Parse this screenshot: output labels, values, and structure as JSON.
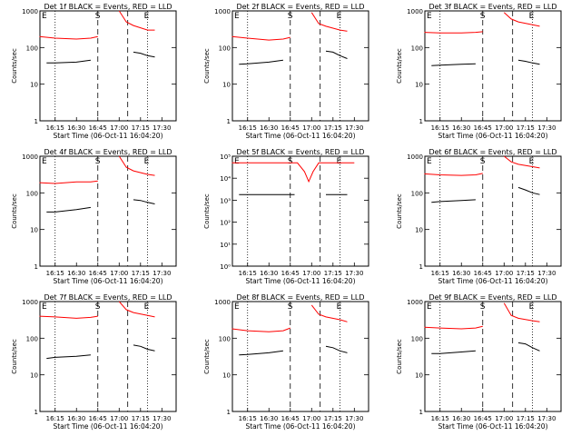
{
  "figure": {
    "time_labels": [
      "16:15",
      "16:30",
      "16:45",
      "17:00",
      "17:15",
      "17:30"
    ],
    "x_axis_label": "Start Time (06-Oct-11 16:04:20)",
    "y_axis_label": "Counts/sec",
    "marker_labels": [
      "E",
      "S",
      "E"
    ],
    "dotted_times": [
      16.25,
      17.333
    ],
    "dashed_times": [
      16.75,
      17.1
    ]
  },
  "colors": {
    "events": "#000000",
    "lld": "#ff0000"
  },
  "chart_data": [
    {
      "type": "line",
      "title": "Det 1f BLACK = Events, RED = LLD",
      "ylim": [
        1,
        1000
      ],
      "yticks": [
        "1",
        "10",
        "100",
        "1000"
      ],
      "xlim": [
        "16:04:20",
        "17:40"
      ],
      "series": [
        {
          "name": "LLD",
          "color": "red",
          "segments": [
            {
              "x": [
                "16:04",
                "16:15",
                "16:30",
                "16:40",
                "16:45"
              ],
              "y": [
                200,
                180,
                170,
                180,
                200
              ]
            },
            {
              "x": [
                "17:00",
                "17:05",
                "17:10",
                "17:20",
                "17:25"
              ],
              "y": [
                1000,
                500,
                400,
                300,
                300
              ]
            }
          ]
        },
        {
          "name": "Events",
          "color": "black",
          "segments": [
            {
              "x": [
                "16:09",
                "16:15",
                "16:30",
                "16:40"
              ],
              "y": [
                38,
                38,
                40,
                45
              ]
            },
            {
              "x": [
                "17:10",
                "17:15",
                "17:20",
                "17:25"
              ],
              "y": [
                75,
                70,
                60,
                55
              ]
            }
          ]
        }
      ]
    },
    {
      "type": "line",
      "title": "Det 2f BLACK = Events, RED = LLD",
      "ylim": [
        1,
        1000
      ],
      "yticks": [
        "1",
        "10",
        "100",
        "1000"
      ],
      "xlim": [
        "16:04:20",
        "17:40"
      ],
      "series": [
        {
          "name": "LLD",
          "color": "red",
          "segments": [
            {
              "x": [
                "16:04",
                "16:15",
                "16:30",
                "16:40",
                "16:45"
              ],
              "y": [
                200,
                180,
                160,
                170,
                190
              ]
            },
            {
              "x": [
                "17:00",
                "17:05",
                "17:10",
                "17:20",
                "17:25"
              ],
              "y": [
                900,
                450,
                380,
                300,
                280
              ]
            }
          ]
        },
        {
          "name": "Events",
          "color": "black",
          "segments": [
            {
              "x": [
                "16:09",
                "16:15",
                "16:30",
                "16:40"
              ],
              "y": [
                35,
                36,
                40,
                45
              ]
            },
            {
              "x": [
                "17:10",
                "17:15",
                "17:20",
                "17:25"
              ],
              "y": [
                80,
                75,
                60,
                50
              ]
            }
          ]
        }
      ]
    },
    {
      "type": "line",
      "title": "Det 3f BLACK = Events, RED = LLD",
      "ylim": [
        1,
        1000
      ],
      "yticks": [
        "1",
        "10",
        "100",
        "1000"
      ],
      "xlim": [
        "16:04:20",
        "17:40"
      ],
      "series": [
        {
          "name": "LLD",
          "color": "red",
          "segments": [
            {
              "x": [
                "16:04",
                "16:15",
                "16:30",
                "16:40",
                "16:45"
              ],
              "y": [
                260,
                250,
                250,
                260,
                270
              ]
            },
            {
              "x": [
                "17:00",
                "17:05",
                "17:10",
                "17:20",
                "17:25"
              ],
              "y": [
                900,
                600,
                500,
                420,
                380
              ]
            }
          ]
        },
        {
          "name": "Events",
          "color": "black",
          "segments": [
            {
              "x": [
                "16:09",
                "16:15",
                "16:30",
                "16:40"
              ],
              "y": [
                32,
                33,
                35,
                36
              ]
            },
            {
              "x": [
                "17:10",
                "17:15",
                "17:20",
                "17:25"
              ],
              "y": [
                45,
                42,
                38,
                35
              ]
            }
          ]
        }
      ]
    },
    {
      "type": "line",
      "title": "Det 4f BLACK = Events, RED = LLD",
      "ylim": [
        1,
        1000
      ],
      "yticks": [
        "1",
        "10",
        "100",
        "1000"
      ],
      "xlim": [
        "16:04:20",
        "17:40"
      ],
      "series": [
        {
          "name": "LLD",
          "color": "red",
          "segments": [
            {
              "x": [
                "16:04",
                "16:15",
                "16:30",
                "16:40",
                "16:45"
              ],
              "y": [
                190,
                180,
                200,
                200,
                210
              ]
            },
            {
              "x": [
                "17:00",
                "17:05",
                "17:10",
                "17:20",
                "17:25"
              ],
              "y": [
                1000,
                500,
                400,
                320,
                300
              ]
            }
          ]
        },
        {
          "name": "Events",
          "color": "black",
          "segments": [
            {
              "x": [
                "16:09",
                "16:15",
                "16:30",
                "16:40"
              ],
              "y": [
                30,
                30,
                35,
                40
              ]
            },
            {
              "x": [
                "17:10",
                "17:15",
                "17:20",
                "17:25"
              ],
              "y": [
                65,
                62,
                55,
                50
              ]
            }
          ]
        }
      ]
    },
    {
      "type": "line",
      "title": "Det 5f BLACK = Events, RED = LLD",
      "ylim": [
        1,
        100000
      ],
      "yticks": [
        "10⁰",
        "10¹",
        "10²",
        "10³",
        "10⁴",
        "10⁵"
      ],
      "xlim": [
        "16:04:20",
        "17:40"
      ],
      "series": [
        {
          "name": "LLD",
          "color": "red",
          "segments": [
            {
              "x": [
                "16:04",
                "16:30",
                "16:50",
                "16:55",
                "16:58",
                "17:01",
                "17:05",
                "17:20",
                "17:30"
              ],
              "y": [
                50000,
                50000,
                50000,
                20000,
                7000,
                20000,
                50000,
                50000,
                50000
              ]
            }
          ]
        },
        {
          "name": "Events",
          "color": "black",
          "segments": [
            {
              "x": [
                "16:09",
                "16:15",
                "16:30",
                "16:45",
                "16:48"
              ],
              "y": [
                1800,
                1800,
                1800,
                1800,
                1800
              ]
            },
            {
              "x": [
                "17:10",
                "17:15",
                "17:20",
                "17:25"
              ],
              "y": [
                1800,
                1800,
                1800,
                1800
              ]
            }
          ]
        }
      ]
    },
    {
      "type": "line",
      "title": "Det 6f BLACK = Events, RED = LLD",
      "ylim": [
        1,
        1000
      ],
      "yticks": [
        "1",
        "10",
        "100",
        "1000"
      ],
      "xlim": [
        "16:04:20",
        "17:40"
      ],
      "series": [
        {
          "name": "LLD",
          "color": "red",
          "segments": [
            {
              "x": [
                "16:04",
                "16:15",
                "16:30",
                "16:40",
                "16:45"
              ],
              "y": [
                330,
                310,
                300,
                310,
                340
              ]
            },
            {
              "x": [
                "17:00",
                "17:05",
                "17:10",
                "17:20",
                "17:25"
              ],
              "y": [
                1000,
                700,
                600,
                520,
                480
              ]
            }
          ]
        },
        {
          "name": "Events",
          "color": "black",
          "segments": [
            {
              "x": [
                "16:09",
                "16:15",
                "16:30",
                "16:40"
              ],
              "y": [
                55,
                58,
                62,
                65
              ]
            },
            {
              "x": [
                "17:10",
                "17:15",
                "17:20",
                "17:25"
              ],
              "y": [
                140,
                120,
                100,
                90
              ]
            }
          ]
        }
      ]
    },
    {
      "type": "line",
      "title": "Det 7f BLACK = Events, RED = LLD",
      "ylim": [
        1,
        1000
      ],
      "yticks": [
        "1",
        "10",
        "100",
        "1000"
      ],
      "xlim": [
        "16:04:20",
        "17:40"
      ],
      "series": [
        {
          "name": "LLD",
          "color": "red",
          "segments": [
            {
              "x": [
                "16:04",
                "16:15",
                "16:30",
                "16:40",
                "16:45"
              ],
              "y": [
                400,
                380,
                350,
                370,
                400
              ]
            },
            {
              "x": [
                "17:00",
                "17:05",
                "17:10",
                "17:20",
                "17:25"
              ],
              "y": [
                1000,
                600,
                500,
                420,
                380
              ]
            }
          ]
        },
        {
          "name": "Events",
          "color": "black",
          "segments": [
            {
              "x": [
                "16:09",
                "16:15",
                "16:30",
                "16:40"
              ],
              "y": [
                28,
                30,
                32,
                35
              ]
            },
            {
              "x": [
                "17:10",
                "17:15",
                "17:20",
                "17:25"
              ],
              "y": [
                65,
                60,
                50,
                45
              ]
            }
          ]
        }
      ]
    },
    {
      "type": "line",
      "title": "Det 8f BLACK = Events, RED = LLD",
      "ylim": [
        1,
        1000
      ],
      "yticks": [
        "1",
        "10",
        "100",
        "1000"
      ],
      "xlim": [
        "16:04:20",
        "17:40"
      ],
      "series": [
        {
          "name": "LLD",
          "color": "red",
          "segments": [
            {
              "x": [
                "16:04",
                "16:15",
                "16:30",
                "16:40",
                "16:45"
              ],
              "y": [
                180,
                160,
                150,
                160,
                190
              ]
            },
            {
              "x": [
                "17:00",
                "17:05",
                "17:10",
                "17:20",
                "17:25"
              ],
              "y": [
                800,
                450,
                380,
                320,
                280
              ]
            }
          ]
        },
        {
          "name": "Events",
          "color": "black",
          "segments": [
            {
              "x": [
                "16:09",
                "16:15",
                "16:30",
                "16:40"
              ],
              "y": [
                35,
                36,
                40,
                45
              ]
            },
            {
              "x": [
                "17:10",
                "17:15",
                "17:20",
                "17:25"
              ],
              "y": [
                60,
                55,
                45,
                40
              ]
            }
          ]
        }
      ]
    },
    {
      "type": "line",
      "title": "Det 9f BLACK = Events, RED = LLD",
      "ylim": [
        1,
        1000
      ],
      "yticks": [
        "1",
        "10",
        "100",
        "1000"
      ],
      "xlim": [
        "16:04:20",
        "17:40"
      ],
      "series": [
        {
          "name": "LLD",
          "color": "red",
          "segments": [
            {
              "x": [
                "16:04",
                "16:15",
                "16:30",
                "16:40",
                "16:45"
              ],
              "y": [
                200,
                190,
                180,
                190,
                210
              ]
            },
            {
              "x": [
                "17:00",
                "17:05",
                "17:10",
                "17:20",
                "17:25"
              ],
              "y": [
                900,
                420,
                350,
                300,
                280
              ]
            }
          ]
        },
        {
          "name": "Events",
          "color": "black",
          "segments": [
            {
              "x": [
                "16:09",
                "16:15",
                "16:30",
                "16:40"
              ],
              "y": [
                38,
                38,
                42,
                45
              ]
            },
            {
              "x": [
                "17:10",
                "17:15",
                "17:20",
                "17:25"
              ],
              "y": [
                75,
                70,
                55,
                45
              ]
            }
          ]
        }
      ]
    }
  ]
}
